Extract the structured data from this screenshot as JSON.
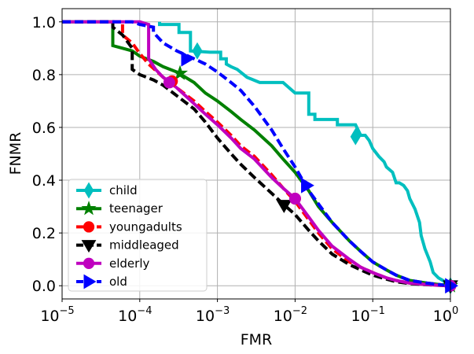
{
  "chart_data": {
    "type": "line",
    "title": "",
    "xlabel": "FMR",
    "ylabel": "FNMR",
    "xscale": "log",
    "xlim": [
      1e-05,
      1
    ],
    "ylim": [
      -0.05,
      1.05
    ],
    "grid": true,
    "legend_position": "lower-left",
    "x_ticks": [
      {
        "value": 1e-05,
        "base": "10",
        "exp": "−5"
      },
      {
        "value": 0.0001,
        "base": "10",
        "exp": "−4"
      },
      {
        "value": 0.001,
        "base": "10",
        "exp": "−3"
      },
      {
        "value": 0.01,
        "base": "10",
        "exp": "−2"
      },
      {
        "value": 0.1,
        "base": "10",
        "exp": "−1"
      },
      {
        "value": 1,
        "base": "10",
        "exp": "0"
      }
    ],
    "y_ticks": [
      {
        "value": 0.0,
        "label": "0.0"
      },
      {
        "value": 0.2,
        "label": "0.2"
      },
      {
        "value": 0.4,
        "label": "0.4"
      },
      {
        "value": 0.6,
        "label": "0.6"
      },
      {
        "value": 0.8,
        "label": "0.8"
      },
      {
        "value": 1.0,
        "label": "1.0"
      }
    ],
    "series": [
      {
        "name": "child",
        "color": "#00bfbf",
        "dash": "solid",
        "marker": "thin_diamond",
        "x": [
          0.00018,
          0.00018,
          0.00032,
          0.00032,
          0.00045,
          0.00045,
          0.0008,
          0.0011,
          0.0011,
          0.0013,
          0.0013,
          0.0015,
          0.0018,
          0.0024,
          0.0035,
          0.005,
          0.007,
          0.01,
          0.015,
          0.015,
          0.018,
          0.018,
          0.025,
          0.035,
          0.035,
          0.06,
          0.07,
          0.08,
          0.09,
          0.1,
          0.12,
          0.14,
          0.15,
          0.18,
          0.2,
          0.22,
          0.25,
          0.28,
          0.3,
          0.35,
          0.4,
          0.42,
          0.45,
          0.47,
          0.5,
          0.55,
          0.6,
          0.7,
          0.8,
          0.9,
          1.0
        ],
        "y": [
          1.0,
          0.99,
          0.99,
          0.96,
          0.96,
          0.89,
          0.885,
          0.885,
          0.86,
          0.86,
          0.84,
          0.83,
          0.82,
          0.79,
          0.77,
          0.77,
          0.77,
          0.73,
          0.73,
          0.65,
          0.65,
          0.63,
          0.63,
          0.63,
          0.61,
          0.61,
          0.57,
          0.57,
          0.55,
          0.52,
          0.49,
          0.47,
          0.45,
          0.43,
          0.39,
          0.39,
          0.38,
          0.36,
          0.33,
          0.29,
          0.24,
          0.19,
          0.16,
          0.14,
          0.12,
          0.09,
          0.05,
          0.03,
          0.02,
          0.01,
          0.0
        ],
        "markers_x": [
          0.00055,
          0.06,
          1.0
        ],
        "markers_y": [
          0.89,
          0.565,
          0.0
        ]
      },
      {
        "name": "teenager",
        "color": "#008000",
        "dash": "solid",
        "marker": "star",
        "x": [
          1e-05,
          4.5e-05,
          4.5e-05,
          6e-05,
          8e-05,
          0.0001,
          0.00015,
          0.0002,
          0.0003,
          0.0005,
          0.0007,
          0.001,
          0.0015,
          0.002,
          0.003,
          0.005,
          0.007,
          0.01,
          0.015,
          0.02,
          0.03,
          0.05,
          0.07,
          0.1,
          0.15,
          0.2,
          0.3,
          0.5,
          0.7,
          1.0
        ],
        "y": [
          1.0,
          1.0,
          0.91,
          0.9,
          0.89,
          0.87,
          0.85,
          0.83,
          0.81,
          0.77,
          0.73,
          0.7,
          0.66,
          0.63,
          0.59,
          0.53,
          0.48,
          0.43,
          0.36,
          0.3,
          0.24,
          0.17,
          0.13,
          0.09,
          0.06,
          0.04,
          0.02,
          0.01,
          0.005,
          0.0
        ],
        "markers_x": [
          0.00033,
          1.0
        ],
        "markers_y": [
          0.805,
          0.0
        ]
      },
      {
        "name": "youngadults",
        "color": "#ff0000",
        "dash": "dashed",
        "marker": "circle",
        "x": [
          1e-05,
          6e-05,
          6e-05,
          8e-05,
          0.0001,
          0.00013,
          0.0002,
          0.0003,
          0.0005,
          0.0007,
          0.001,
          0.0015,
          0.002,
          0.003,
          0.005,
          0.007,
          0.01,
          0.015,
          0.02,
          0.03,
          0.05,
          0.07,
          0.1,
          0.15,
          0.2,
          0.3,
          0.5,
          0.7,
          1.0
        ],
        "y": [
          1.0,
          1.0,
          0.95,
          0.92,
          0.88,
          0.84,
          0.79,
          0.75,
          0.7,
          0.66,
          0.62,
          0.57,
          0.53,
          0.49,
          0.42,
          0.37,
          0.32,
          0.25,
          0.2,
          0.14,
          0.09,
          0.07,
          0.05,
          0.03,
          0.02,
          0.01,
          0.005,
          0.002,
          0.0
        ],
        "markers_x": [
          0.00026,
          0.01,
          1.0
        ],
        "markers_y": [
          0.775,
          0.33,
          0.0
        ]
      },
      {
        "name": "middleaged",
        "color": "#000000",
        "dash": "dashed",
        "marker": "triangle_down",
        "x": [
          1e-05,
          4.5e-05,
          4.5e-05,
          6e-05,
          8e-05,
          8e-05,
          0.0001,
          0.00015,
          0.0002,
          0.0003,
          0.0005,
          0.0007,
          0.001,
          0.0015,
          0.002,
          0.003,
          0.005,
          0.007,
          0.01,
          0.015,
          0.02,
          0.03,
          0.05,
          0.07,
          0.1,
          0.15,
          0.2,
          0.3,
          0.5,
          0.7,
          1.0
        ],
        "y": [
          1.0,
          1.0,
          0.98,
          0.95,
          0.9,
          0.82,
          0.8,
          0.78,
          0.76,
          0.72,
          0.67,
          0.62,
          0.56,
          0.5,
          0.46,
          0.41,
          0.35,
          0.31,
          0.27,
          0.21,
          0.17,
          0.12,
          0.08,
          0.06,
          0.04,
          0.025,
          0.015,
          0.008,
          0.004,
          0.002,
          0.0
        ],
        "markers_x": [
          0.0072,
          1.0
        ],
        "markers_y": [
          0.305,
          0.0
        ]
      },
      {
        "name": "elderly",
        "color": "#bf00bf",
        "dash": "solid",
        "marker": "circle",
        "x": [
          1e-05,
          0.0001,
          0.00013,
          0.00013,
          0.00016,
          0.0002,
          0.0003,
          0.0005,
          0.0007,
          0.001,
          0.0015,
          0.002,
          0.003,
          0.005,
          0.007,
          0.01,
          0.015,
          0.02,
          0.03,
          0.05,
          0.07,
          0.1,
          0.15,
          0.2,
          0.3,
          0.5,
          0.7,
          1.0
        ],
        "y": [
          1.0,
          1.0,
          0.99,
          0.86,
          0.82,
          0.79,
          0.75,
          0.69,
          0.65,
          0.61,
          0.56,
          0.52,
          0.48,
          0.41,
          0.37,
          0.33,
          0.26,
          0.21,
          0.15,
          0.1,
          0.07,
          0.05,
          0.03,
          0.02,
          0.01,
          0.005,
          0.002,
          0.0
        ],
        "markers_x": [
          0.00024,
          0.01,
          1.0
        ],
        "markers_y": [
          0.77,
          0.33,
          0.0
        ]
      },
      {
        "name": "old",
        "color": "#0000ff",
        "dash": "dashed",
        "marker": "triangle_right",
        "x": [
          1e-05,
          8e-05,
          0.0001,
          0.00015,
          0.00015,
          0.0002,
          0.0003,
          0.0005,
          0.0007,
          0.001,
          0.0015,
          0.002,
          0.003,
          0.005,
          0.007,
          0.01,
          0.015,
          0.02,
          0.03,
          0.05,
          0.07,
          0.1,
          0.15,
          0.2,
          0.3,
          0.5,
          0.7,
          1.0
        ],
        "y": [
          1.0,
          1.0,
          0.99,
          0.98,
          0.96,
          0.92,
          0.89,
          0.86,
          0.84,
          0.81,
          0.77,
          0.74,
          0.68,
          0.59,
          0.52,
          0.45,
          0.36,
          0.31,
          0.24,
          0.17,
          0.13,
          0.09,
          0.06,
          0.04,
          0.02,
          0.01,
          0.005,
          0.0
        ],
        "markers_x": [
          0.0004,
          0.014,
          1.0
        ],
        "markers_y": [
          0.86,
          0.38,
          0.0
        ]
      }
    ]
  }
}
